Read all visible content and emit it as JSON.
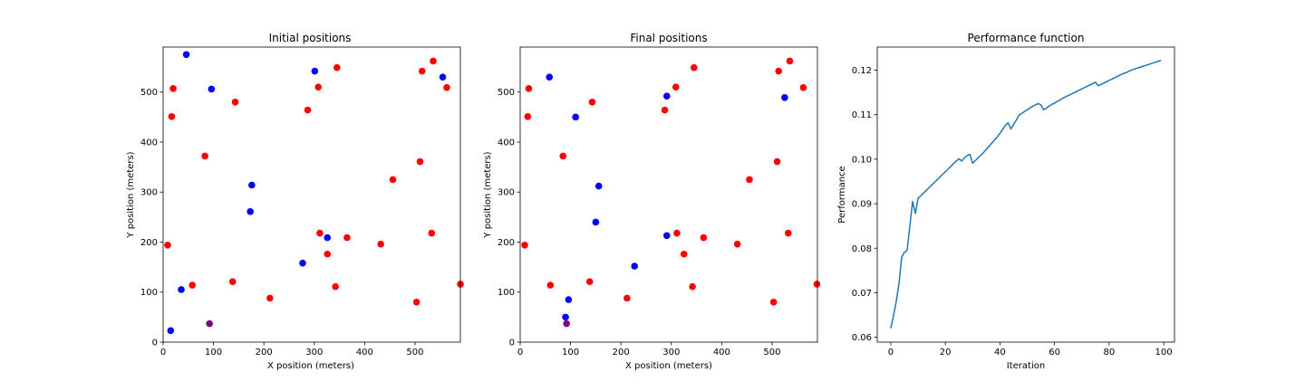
{
  "chart_data": [
    {
      "type": "scatter",
      "title": "Initial positions",
      "xlabel": "X position (meters)",
      "ylabel": "Y position (meters)",
      "xlim": [
        0,
        590
      ],
      "ylim": [
        0,
        590
      ],
      "xticks": [
        0,
        100,
        200,
        300,
        400,
        500
      ],
      "yticks": [
        0,
        100,
        200,
        300,
        400,
        500
      ],
      "grid": false,
      "series": [
        {
          "color": "#ff0000",
          "points": [
            [
              20,
              507
            ],
            [
              17,
              451
            ],
            [
              143,
              480
            ],
            [
              83,
              372
            ],
            [
              9,
              194
            ],
            [
              58,
              114
            ],
            [
              138,
              121
            ],
            [
              212,
              88
            ],
            [
              287,
              464
            ],
            [
              308,
              510
            ],
            [
              345,
              549
            ],
            [
              514,
              542
            ],
            [
              536,
              562
            ],
            [
              563,
              509
            ],
            [
              510,
              361
            ],
            [
              456,
              325
            ],
            [
              311,
              218
            ],
            [
              326,
              176
            ],
            [
              365,
              209
            ],
            [
              432,
              196
            ],
            [
              533,
              218
            ],
            [
              342,
              111
            ],
            [
              503,
              80
            ],
            [
              590,
              116
            ]
          ]
        },
        {
          "color": "#0000ff",
          "points": [
            [
              46,
              575
            ],
            [
              96,
              506
            ],
            [
              301,
              542
            ],
            [
              555,
              530
            ],
            [
              176,
              314
            ],
            [
              173,
              261
            ],
            [
              277,
              158
            ],
            [
              326,
              209
            ],
            [
              36,
              105
            ],
            [
              15,
              23
            ]
          ]
        },
        {
          "color": "#800080",
          "points": [
            [
              92,
              37
            ]
          ]
        }
      ]
    },
    {
      "type": "scatter",
      "title": "Final positions",
      "xlabel": "X position (meters)",
      "ylabel": "Y position (meters)",
      "xlim": [
        0,
        590
      ],
      "ylim": [
        0,
        590
      ],
      "xticks": [
        0,
        100,
        200,
        300,
        400,
        500
      ],
      "yticks": [
        0,
        100,
        200,
        300,
        400,
        500
      ],
      "grid": false,
      "series": [
        {
          "color": "#ff0000",
          "points": [
            [
              17,
              507
            ],
            [
              15,
              451
            ],
            [
              143,
              480
            ],
            [
              85,
              372
            ],
            [
              9,
              194
            ],
            [
              60,
              114
            ],
            [
              138,
              121
            ],
            [
              212,
              88
            ],
            [
              287,
              464
            ],
            [
              309,
              510
            ],
            [
              345,
              549
            ],
            [
              513,
              542
            ],
            [
              535,
              562
            ],
            [
              562,
              509
            ],
            [
              510,
              361
            ],
            [
              455,
              325
            ],
            [
              311,
              218
            ],
            [
              325,
              176
            ],
            [
              364,
              209
            ],
            [
              431,
              196
            ],
            [
              532,
              218
            ],
            [
              342,
              111
            ],
            [
              503,
              80
            ],
            [
              589,
              116
            ]
          ]
        },
        {
          "color": "#0000ff",
          "points": [
            [
              58,
              530
            ],
            [
              291,
              492
            ],
            [
              110,
              450
            ],
            [
              525,
              489
            ],
            [
              156,
              312
            ],
            [
              150,
              240
            ],
            [
              227,
              152
            ],
            [
              291,
              213
            ],
            [
              96,
              85
            ],
            [
              90,
              50
            ]
          ]
        },
        {
          "color": "#800080",
          "points": [
            [
              92,
              37
            ]
          ]
        }
      ]
    },
    {
      "type": "line",
      "title": "Performance function",
      "xlabel": "Iteration",
      "ylabel": "Performance",
      "xlim": [
        -4.95,
        103.95
      ],
      "ylim": [
        0.0589,
        0.1252
      ],
      "xticks": [
        0,
        20,
        40,
        60,
        80,
        100
      ],
      "yticks": [
        0.06,
        0.07,
        0.08,
        0.09,
        0.1,
        0.11,
        0.12
      ],
      "ytick_labels": [
        "0.06",
        "0.07",
        "0.08",
        "0.09",
        "0.10",
        "0.11",
        "0.12"
      ],
      "grid": false,
      "series": [
        {
          "color": "#1f77b4",
          "x": [
            0,
            1,
            2,
            3,
            4,
            5,
            6,
            7,
            8,
            9,
            10,
            11,
            12,
            13,
            14,
            15,
            16,
            17,
            18,
            19,
            20,
            21,
            22,
            23,
            24,
            25,
            26,
            27,
            28,
            29,
            30,
            31,
            32,
            33,
            34,
            35,
            36,
            37,
            38,
            39,
            40,
            41,
            42,
            43,
            44,
            45,
            46,
            47,
            48,
            49,
            50,
            51,
            52,
            53,
            54,
            55,
            56,
            57,
            58,
            59,
            60,
            61,
            62,
            63,
            64,
            65,
            66,
            67,
            68,
            69,
            70,
            71,
            72,
            73,
            74,
            75,
            76,
            77,
            78,
            79,
            80,
            81,
            82,
            83,
            84,
            85,
            86,
            87,
            88,
            89,
            90,
            91,
            92,
            93,
            94,
            95,
            96,
            97,
            98,
            99
          ],
          "y": [
            0.062,
            0.0648,
            0.068,
            0.072,
            0.078,
            0.0791,
            0.0795,
            0.085,
            0.0905,
            0.0878,
            0.0912,
            0.0918,
            0.0924,
            0.093,
            0.0936,
            0.0942,
            0.0948,
            0.0954,
            0.096,
            0.0966,
            0.0972,
            0.0978,
            0.0984,
            0.099,
            0.0996,
            0.1001,
            0.0996,
            0.1003,
            0.1008,
            0.1011,
            0.0991,
            0.0997,
            0.1003,
            0.1009,
            0.1015,
            0.1022,
            0.1029,
            0.1036,
            0.1043,
            0.105,
            0.1058,
            0.1067,
            0.1076,
            0.1082,
            0.1068,
            0.1078,
            0.1088,
            0.1099,
            0.1103,
            0.1107,
            0.1111,
            0.1115,
            0.1119,
            0.1122,
            0.1125,
            0.1122,
            0.1111,
            0.1115,
            0.1119,
            0.1123,
            0.1126,
            0.113,
            0.1133,
            0.1137,
            0.114,
            0.1143,
            0.1146,
            0.1149,
            0.1152,
            0.1155,
            0.1158,
            0.1161,
            0.1164,
            0.1167,
            0.117,
            0.1173,
            0.1165,
            0.1168,
            0.1171,
            0.1174,
            0.1177,
            0.118,
            0.1183,
            0.1186,
            0.1189,
            0.1192,
            0.1194,
            0.1197,
            0.12,
            0.1202,
            0.1204,
            0.1206,
            0.1208,
            0.121,
            0.1212,
            0.1214,
            0.1216,
            0.1218,
            0.122,
            0.1222
          ]
        }
      ]
    }
  ]
}
